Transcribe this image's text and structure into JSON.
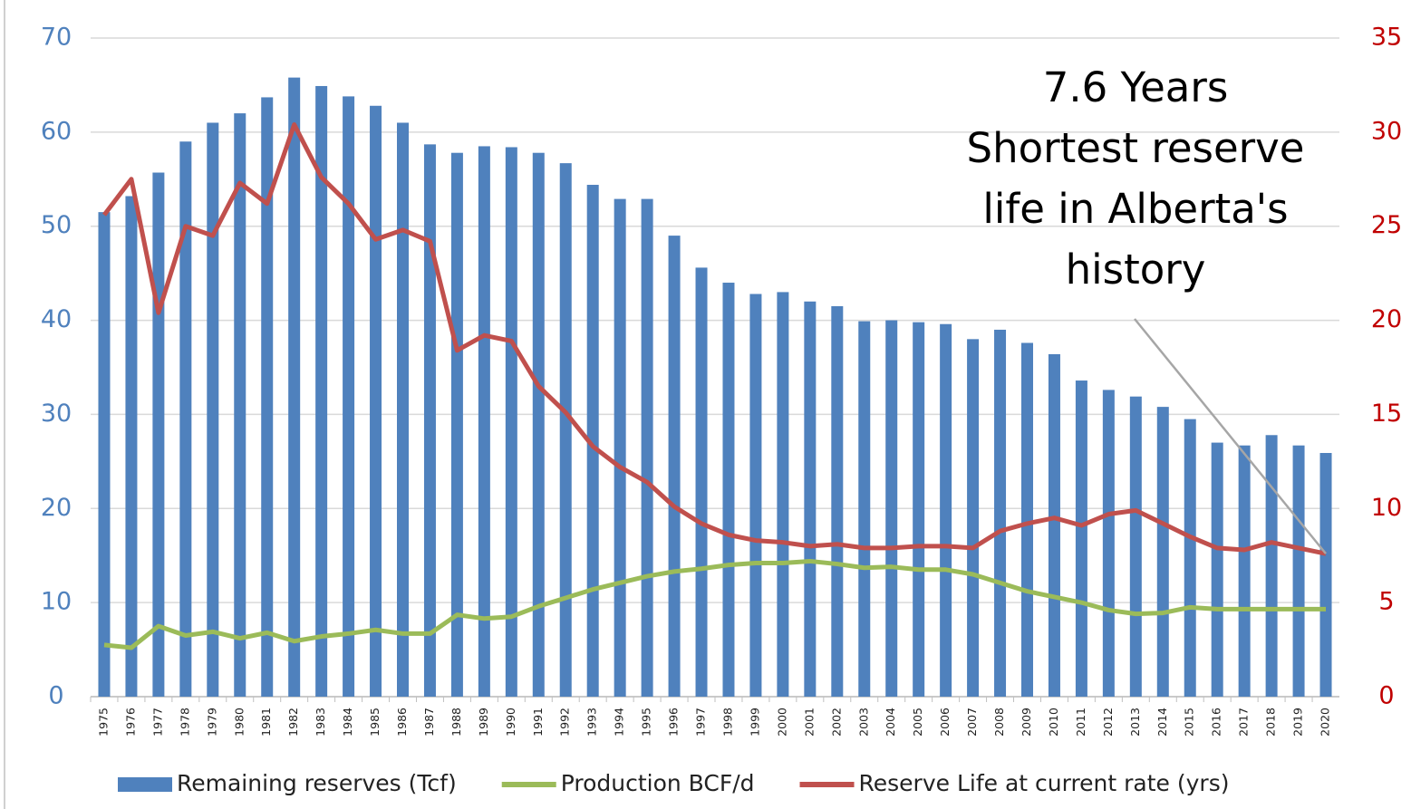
{
  "chart_data": {
    "type": "bar",
    "categories": [
      "1975",
      "1976",
      "1977",
      "1978",
      "1979",
      "1980",
      "1981",
      "1982",
      "1983",
      "1984",
      "1985",
      "1986",
      "1987",
      "1988",
      "1989",
      "1990",
      "1991",
      "1992",
      "1993",
      "1994",
      "1995",
      "1996",
      "1997",
      "1998",
      "1999",
      "2000",
      "2001",
      "2002",
      "2003",
      "2004",
      "2005",
      "2006",
      "2007",
      "2008",
      "2009",
      "2010",
      "2011",
      "2012",
      "2013",
      "2014",
      "2015",
      "2016",
      "2017",
      "2018",
      "2019",
      "2020"
    ],
    "series": [
      {
        "name": "Remaining reserves (Tcf)",
        "type": "bar",
        "color": "#4f81bd",
        "axis": "y",
        "values": [
          51.5,
          53.2,
          55.7,
          59,
          61,
          62,
          63.7,
          65.8,
          64.9,
          63.8,
          62.8,
          61,
          58.7,
          57.8,
          58.5,
          58.4,
          57.8,
          56.7,
          54.4,
          52.9,
          52.9,
          49,
          45.6,
          44,
          42.8,
          43,
          42,
          41.5,
          39.9,
          40,
          39.8,
          39.6,
          38,
          39,
          37.6,
          36.4,
          33.6,
          32.6,
          31.9,
          30.8,
          29.5,
          27,
          26.7,
          27.8,
          26.7,
          25.9
        ]
      },
      {
        "name": "Production BCF/d",
        "type": "line",
        "color": "#9bbb59",
        "axis": "y",
        "values": [
          5.5,
          5.2,
          7.5,
          6.5,
          6.9,
          6.2,
          6.8,
          5.9,
          6.4,
          6.7,
          7.1,
          6.7,
          6.7,
          8.7,
          8.3,
          8.5,
          9.6,
          10.5,
          11.4,
          12.1,
          12.8,
          13.3,
          13.6,
          14,
          14.2,
          14.2,
          14.4,
          14.1,
          13.7,
          13.8,
          13.5,
          13.5,
          13,
          12.1,
          11.2,
          10.6,
          10,
          9.2,
          8.8,
          8.9,
          9.5,
          9.3,
          9.3,
          9.3,
          9.3,
          9.3
        ]
      },
      {
        "name": "Reserve Life at current rate (yrs)",
        "type": "line",
        "color": "#c0504d",
        "axis": "y2",
        "values": [
          25.6,
          27.5,
          20.4,
          25,
          24.5,
          27.3,
          26.2,
          30.4,
          27.6,
          26.2,
          24.3,
          24.8,
          24.2,
          18.4,
          19.2,
          18.9,
          16.5,
          15.1,
          13.3,
          12.2,
          11.4,
          10.1,
          9.2,
          8.6,
          8.3,
          8.2,
          8,
          8.1,
          7.9,
          7.9,
          8,
          8,
          7.9,
          8.8,
          9.2,
          9.5,
          9.1,
          9.7,
          9.9,
          9.2,
          8.5,
          7.9,
          7.8,
          8.2,
          7.9,
          7.6
        ]
      }
    ],
    "ylim": [
      0,
      70
    ],
    "yticks": [
      0,
      10,
      20,
      30,
      40,
      50,
      60,
      70
    ],
    "y2lim": [
      0,
      35
    ],
    "y2ticks": [
      0,
      5,
      10,
      15,
      20,
      25,
      30,
      35
    ],
    "grid": true,
    "legend": "bottom",
    "annotation": {
      "lines": [
        "7.6 Years",
        "Shortest reserve",
        "life in Alberta's",
        "history"
      ]
    }
  }
}
